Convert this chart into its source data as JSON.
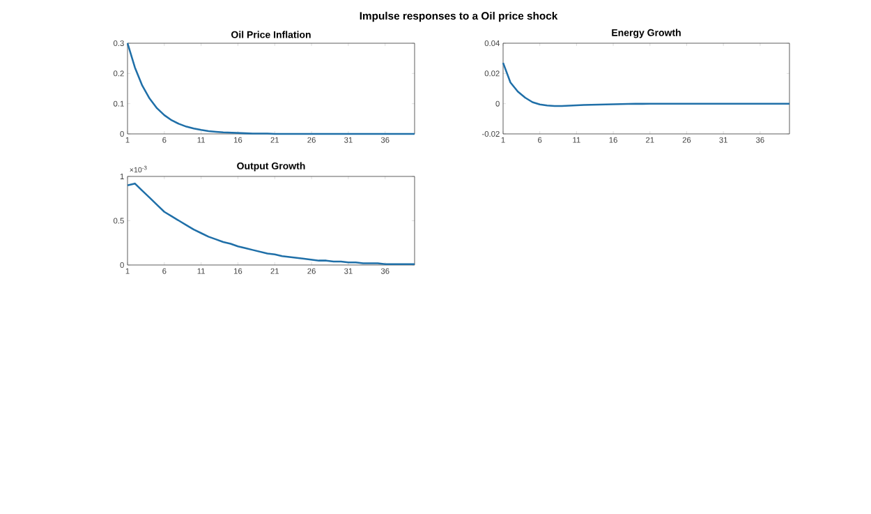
{
  "chart_data": [
    {
      "type": "line",
      "title": "Oil Price Inflation",
      "annotations": [
        "Impulse responses to a Oil price shock"
      ],
      "x": [
        1,
        2,
        3,
        4,
        5,
        6,
        7,
        8,
        9,
        10,
        11,
        12,
        13,
        14,
        15,
        16,
        17,
        18,
        19,
        20,
        21,
        22,
        23,
        24,
        25,
        26,
        27,
        28,
        29,
        30,
        31,
        32,
        33,
        34,
        35,
        36,
        37,
        38,
        39,
        40
      ],
      "series": [
        {
          "color": "#1f6fa8",
          "values": [
            0.3,
            0.22,
            0.16,
            0.117,
            0.085,
            0.062,
            0.045,
            0.033,
            0.024,
            0.018,
            0.013,
            0.009,
            0.007,
            0.005,
            0.004,
            0.003,
            0.002,
            0.001,
            0.001,
            0.001,
            0,
            0,
            0,
            0,
            0,
            0,
            0,
            0,
            0,
            0,
            0,
            0,
            0,
            0,
            0,
            0,
            0,
            0,
            0,
            0
          ]
        }
      ],
      "xlim": [
        1,
        40
      ],
      "xticks": [
        1,
        6,
        11,
        16,
        21,
        26,
        31,
        36
      ],
      "ylim": [
        0,
        0.3
      ],
      "yticks": [
        0,
        0.1,
        0.2,
        0.3
      ]
    },
    {
      "type": "line",
      "title": "Energy Growth",
      "x": [
        1,
        2,
        3,
        4,
        5,
        6,
        7,
        8,
        9,
        10,
        11,
        12,
        13,
        14,
        15,
        16,
        17,
        18,
        19,
        20,
        21,
        22,
        23,
        24,
        25,
        26,
        27,
        28,
        29,
        30,
        31,
        32,
        33,
        34,
        35,
        36,
        37,
        38,
        39,
        40
      ],
      "series": [
        {
          "color": "#1f6fa8",
          "values": [
            0.027,
            0.014,
            0.008,
            0.004,
            0.001,
            -0.0005,
            -0.0012,
            -0.0015,
            -0.0015,
            -0.0013,
            -0.0011,
            -0.0009,
            -0.0007,
            -0.0006,
            -0.0005,
            -0.0004,
            -0.0003,
            -0.0002,
            -0.0001,
            -0.0001,
            0,
            0,
            0,
            0,
            0,
            0,
            0,
            0,
            0,
            0,
            0,
            0,
            0,
            0,
            0,
            0,
            0,
            0,
            0,
            0
          ]
        }
      ],
      "xlim": [
        1,
        40
      ],
      "xticks": [
        1,
        6,
        11,
        16,
        21,
        26,
        31,
        36
      ],
      "ylim": [
        -0.02,
        0.04
      ],
      "yticks": [
        -0.02,
        0,
        0.02,
        0.04
      ]
    },
    {
      "type": "line",
      "title": "Output Growth",
      "annotations": [
        "×10$^{-3}$"
      ],
      "x": [
        1,
        2,
        3,
        4,
        5,
        6,
        7,
        8,
        9,
        10,
        11,
        12,
        13,
        14,
        15,
        16,
        17,
        18,
        19,
        20,
        21,
        22,
        23,
        24,
        25,
        26,
        27,
        28,
        29,
        30,
        31,
        32,
        33,
        34,
        35,
        36,
        37,
        38,
        39,
        40
      ],
      "series": [
        {
          "color": "#1f6fa8",
          "values": [
            0.9,
            0.92,
            0.84,
            0.76,
            0.68,
            0.6,
            0.55,
            0.5,
            0.45,
            0.4,
            0.36,
            0.32,
            0.29,
            0.26,
            0.24,
            0.21,
            0.19,
            0.17,
            0.15,
            0.13,
            0.12,
            0.1,
            0.09,
            0.08,
            0.07,
            0.06,
            0.05,
            0.05,
            0.04,
            0.04,
            0.03,
            0.03,
            0.02,
            0.02,
            0.02,
            0.01,
            0.01,
            0.01,
            0.01,
            0.01
          ]
        }
      ],
      "xlim": [
        1,
        40
      ],
      "xticks": [
        1,
        6,
        11,
        16,
        21,
        26,
        31,
        36
      ],
      "ylim": [
        0,
        1
      ],
      "yticks": [
        0,
        0.5,
        1
      ]
    }
  ]
}
